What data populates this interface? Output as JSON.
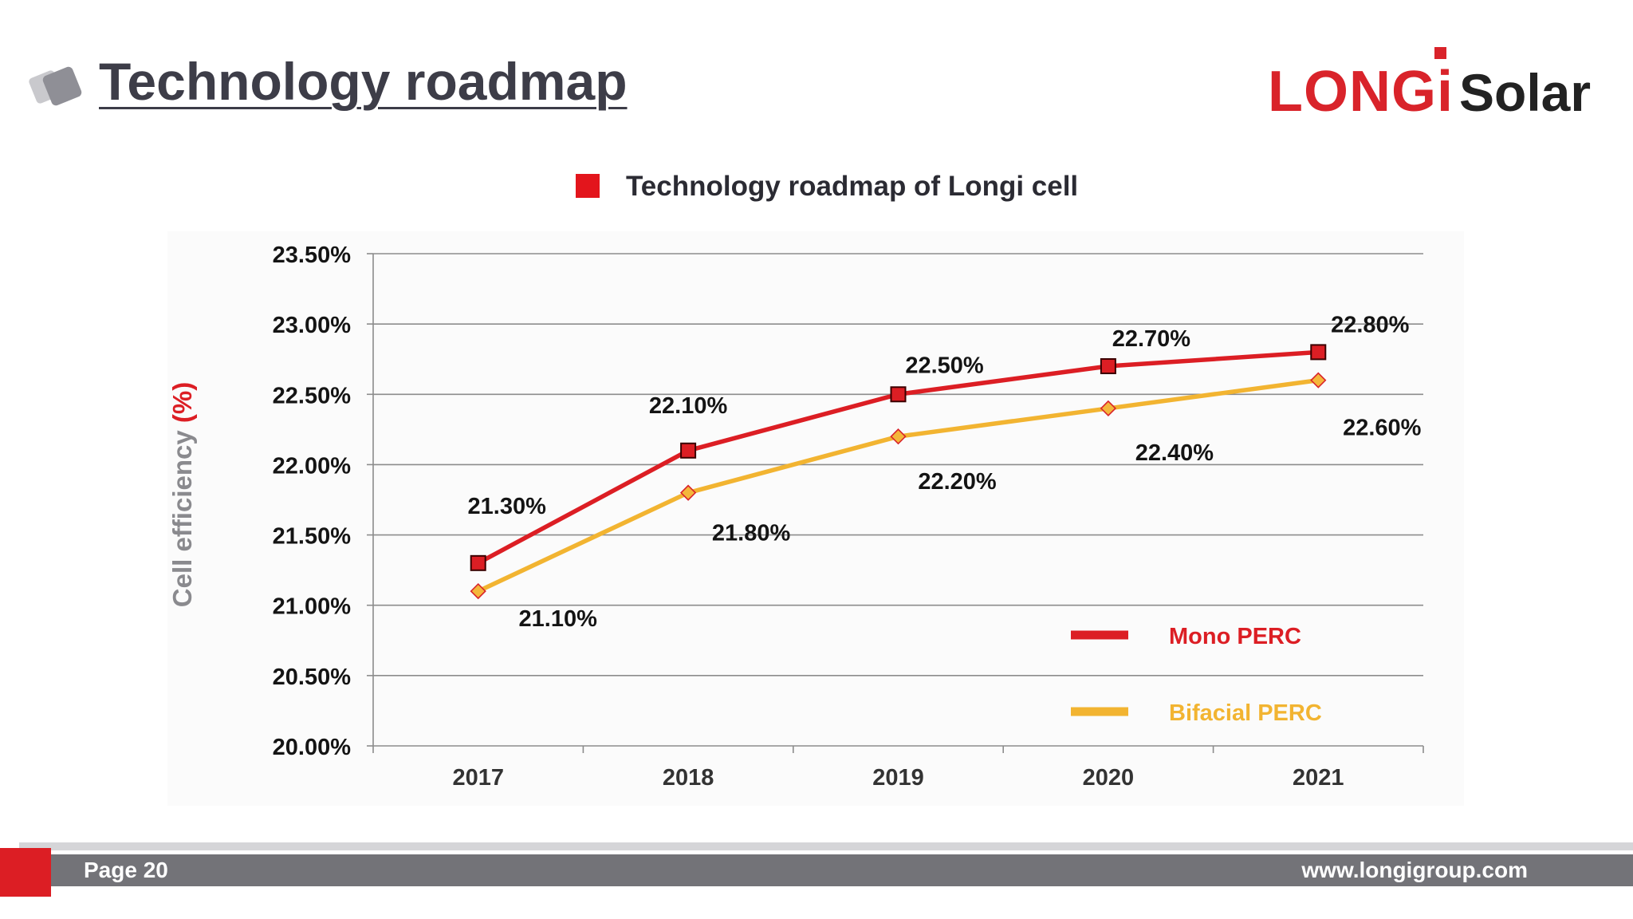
{
  "header": {
    "title": "Technology roadmap",
    "logo_brand": "LONGi",
    "logo_suffix": "Solar"
  },
  "chart_data": {
    "type": "line",
    "title": "Technology roadmap of Longi cell",
    "ylabel_main": "Cell efficiency ",
    "ylabel_unit": "(%)",
    "xlabel": "",
    "categories": [
      "2017",
      "2018",
      "2019",
      "2020",
      "2021"
    ],
    "ylim": [
      20.0,
      23.5
    ],
    "yticks": [
      20.0,
      20.5,
      21.0,
      21.5,
      22.0,
      22.5,
      23.0,
      23.5
    ],
    "ytick_labels": [
      "20.00%",
      "20.50%",
      "21.00%",
      "21.50%",
      "22.00%",
      "22.50%",
      "23.00%",
      "23.50%"
    ],
    "grid": true,
    "legend_position": "bottom-right",
    "series": [
      {
        "name": "Mono PERC",
        "color": "#dc1e24",
        "marker": "square",
        "values": [
          21.3,
          22.1,
          22.5,
          22.7,
          22.8
        ],
        "labels": [
          "21.30%",
          "22.10%",
          "22.50%",
          "22.70%",
          "22.80%"
        ]
      },
      {
        "name": "Bifacial PERC",
        "color": "#f2b431",
        "marker": "diamond",
        "values": [
          21.1,
          21.8,
          22.2,
          22.4,
          22.6
        ],
        "labels": [
          "21.10%",
          "21.80%",
          "22.20%",
          "22.40%",
          "22.60%"
        ]
      }
    ],
    "colors": {
      "title_marker": "#e3151c",
      "axis_label_text": "#8a8a8e",
      "axis_label_unit": "#dc1e24",
      "gridline": "#8c8c8c",
      "text": "#141414"
    }
  },
  "footer": {
    "page": "Page 20",
    "url": "www.longigroup.com"
  }
}
